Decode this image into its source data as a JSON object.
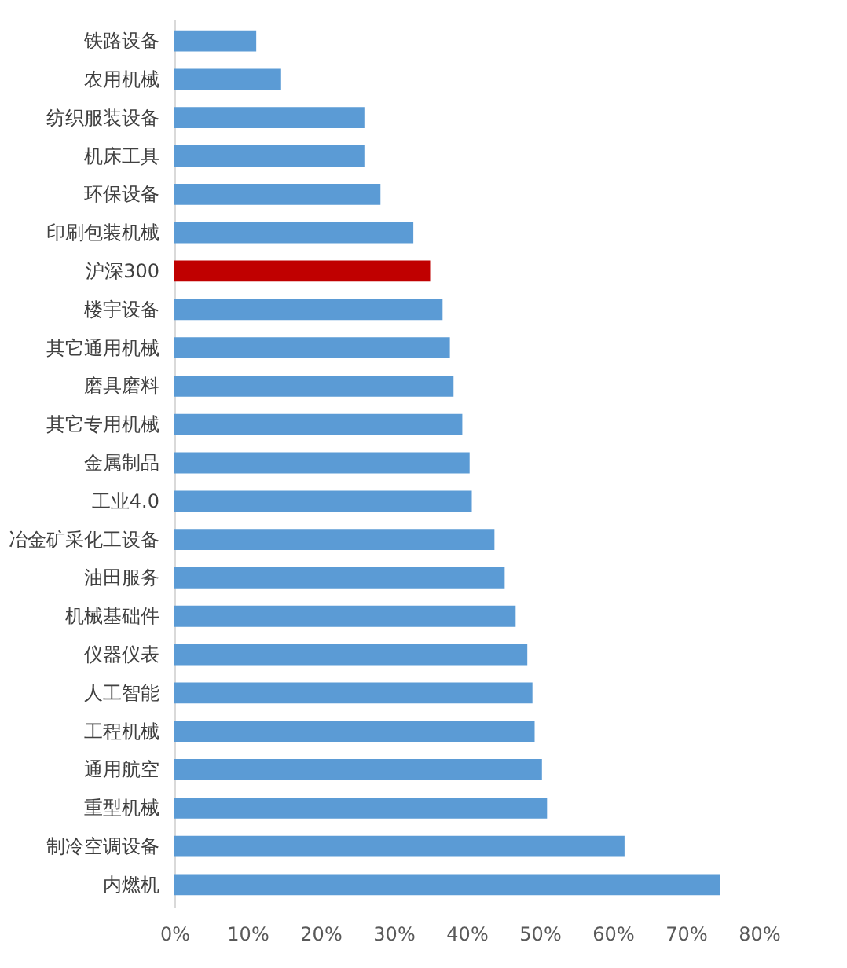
{
  "chart_data": {
    "type": "bar",
    "orientation": "horizontal",
    "categories": [
      "铁路设备",
      "农用机械",
      "纺织服装设备",
      "机床工具",
      "环保设备",
      "印刷包装机械",
      "沪深300",
      "楼宇设备",
      "其它通用机械",
      "磨具磨料",
      "其它专用机械",
      "金属制品",
      "工业4.0",
      "冶金矿采化工设备",
      "油田服务",
      "机械基础件",
      "仪器仪表",
      "人工智能",
      "工程机械",
      "通用航空",
      "重型机械",
      "制冷空调设备",
      "内燃机"
    ],
    "values": [
      11.2,
      14.6,
      26.0,
      26.0,
      28.2,
      32.7,
      35.0,
      36.7,
      37.7,
      38.2,
      39.4,
      40.4,
      40.7,
      43.8,
      45.2,
      46.7,
      48.3,
      49.0,
      49.3,
      50.3,
      51.0,
      61.6,
      74.7
    ],
    "colors": [
      "#5b9bd5",
      "#5b9bd5",
      "#5b9bd5",
      "#5b9bd5",
      "#5b9bd5",
      "#5b9bd5",
      "#c00000",
      "#5b9bd5",
      "#5b9bd5",
      "#5b9bd5",
      "#5b9bd5",
      "#5b9bd5",
      "#5b9bd5",
      "#5b9bd5",
      "#5b9bd5",
      "#5b9bd5",
      "#5b9bd5",
      "#5b9bd5",
      "#5b9bd5",
      "#5b9bd5",
      "#5b9bd5",
      "#5b9bd5",
      "#5b9bd5"
    ],
    "xlim": [
      0,
      80
    ],
    "xticks": [
      {
        "value": 0,
        "label": "0%"
      },
      {
        "value": 10,
        "label": "10%"
      },
      {
        "value": 20,
        "label": "20%"
      },
      {
        "value": 30,
        "label": "30%"
      },
      {
        "value": 40,
        "label": "40%"
      },
      {
        "value": 50,
        "label": "50%"
      },
      {
        "value": 60,
        "label": "60%"
      },
      {
        "value": 70,
        "label": "70%"
      },
      {
        "value": 80,
        "label": "80%"
      }
    ],
    "grid": false
  }
}
